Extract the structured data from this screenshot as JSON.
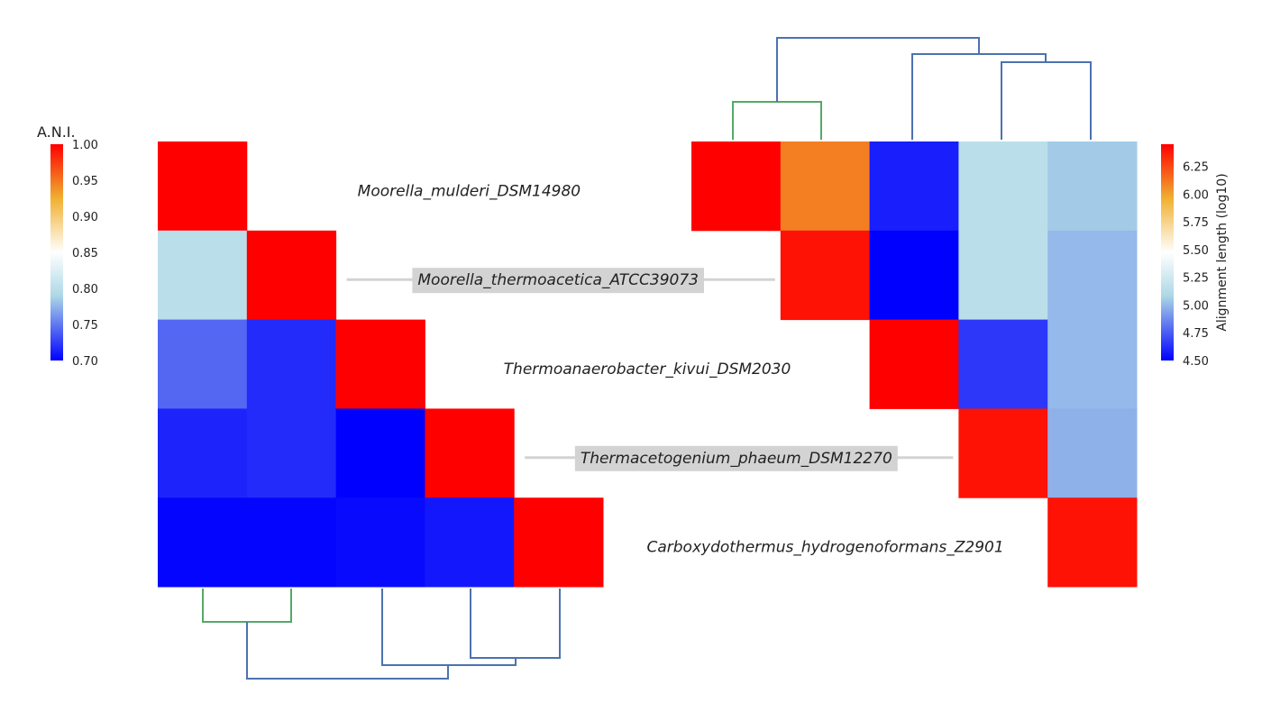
{
  "chart_data": {
    "type": "heatmap",
    "genomes": [
      "Moorella_mulderi_DSM14980",
      "Moorella_thermoacetica_ATCC39073",
      "Thermoanaerobacter_kivui_DSM2030",
      "Thermacetogenium_phaeum_DSM12270",
      "Carboxydothermus_hydrogenoformans_Z2901"
    ],
    "ani": {
      "title": "A.N.I.",
      "range": [
        0.7,
        1.0
      ],
      "ticks": [
        "0.70",
        "0.75",
        "0.80",
        "0.85",
        "0.90",
        "0.95",
        "1.00"
      ],
      "matrix": [
        [
          1.0,
          null,
          null,
          null,
          null
        ],
        [
          0.8,
          1.0,
          null,
          null,
          null
        ],
        [
          0.743,
          0.718,
          1.0,
          null,
          null
        ],
        [
          0.715,
          0.718,
          0.7,
          1.0,
          null
        ],
        [
          0.702,
          0.702,
          0.704,
          0.71,
          1.0
        ]
      ]
    },
    "alignment_length": {
      "title": "Alignment length (log10)",
      "range": [
        4.5,
        6.45
      ],
      "ticks": [
        "4.50",
        "4.75",
        "5.00",
        "5.25",
        "5.50",
        "5.75",
        "6.00",
        "6.25"
      ],
      "matrix": [
        [
          6.45,
          6.1,
          4.58,
          5.15,
          5.05
        ],
        [
          null,
          6.4,
          4.5,
          5.15,
          5.0
        ],
        [
          null,
          null,
          6.45,
          4.65,
          5.0
        ],
        [
          null,
          null,
          null,
          6.4,
          4.98
        ],
        [
          null,
          null,
          null,
          null,
          6.4
        ]
      ]
    },
    "highlighted_labels": [
      1,
      3
    ],
    "colors": {
      "low": "#0000ff",
      "mid": "#ffffff",
      "high": "#ff0000",
      "dendrogram": "#4c72b0",
      "dendrogram_cluster": "#55a868",
      "label_box": "#d3d3d3"
    }
  }
}
